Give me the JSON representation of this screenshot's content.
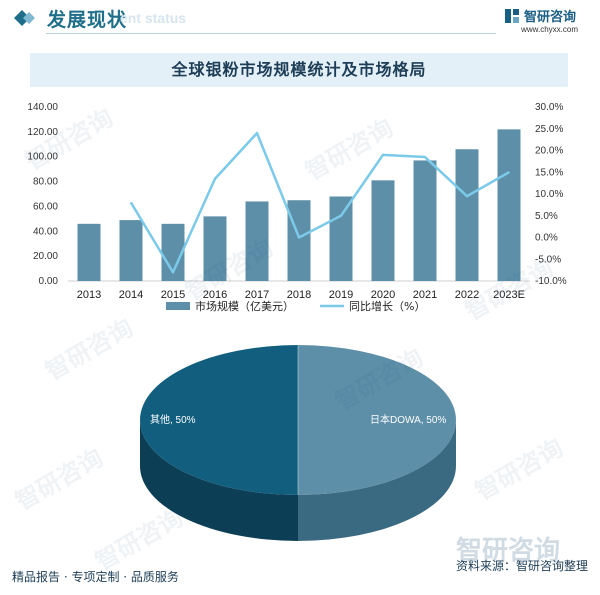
{
  "header": {
    "title": "发展现状",
    "subtitle": "ent status",
    "brand_name": "智研咨询",
    "brand_url": "www.chyxx.com"
  },
  "watermark": {
    "text": "智研咨询"
  },
  "chart_data": [
    {
      "type": "bar",
      "title": "全球银粉市场规模统计及市场格局",
      "categories": [
        "2013",
        "2014",
        "2015",
        "2016",
        "2017",
        "2018",
        "2019",
        "2020",
        "2021",
        "2022",
        "2023E"
      ],
      "series": [
        {
          "name": "市场规模（亿美元）",
          "type": "bar",
          "axis": "left",
          "values": [
            46,
            49,
            46,
            52,
            64,
            65,
            68,
            81,
            97,
            106,
            122
          ]
        },
        {
          "name": "同比增长（%）",
          "type": "line",
          "axis": "right",
          "values": [
            null,
            8,
            -8,
            13.5,
            24,
            0,
            5,
            19,
            18.5,
            9.5,
            15
          ]
        }
      ],
      "y_left": {
        "min": 0,
        "max": 140,
        "step": 20,
        "tick_labels": [
          "0.00",
          "20.00",
          "40.00",
          "60.00",
          "80.00",
          "100.00",
          "120.00",
          "140.00"
        ]
      },
      "y_right": {
        "min": -10,
        "max": 30,
        "step": 5,
        "tick_labels": [
          "-10.0%",
          "-5.0%",
          "0.0%",
          "5.0%",
          "10.0%",
          "15.0%",
          "20.0%",
          "25.0%",
          "30.0%"
        ]
      },
      "legend": "bottom",
      "colors": {
        "bar": "#5d8fa8",
        "line": "#7ccaea"
      }
    },
    {
      "type": "pie",
      "style": "3d",
      "slices": [
        {
          "label": "日本DOWA, 50%",
          "value": 50,
          "color": "#5d8fa8",
          "side_color": "#3a6a82"
        },
        {
          "label": "其他, 50%",
          "value": 50,
          "color": "#125e7e",
          "side_color": "#0c3e55"
        }
      ]
    }
  ],
  "footer": {
    "left": "精品报告 · 专项定制 · 品质服务",
    "right": "资料来源：智研咨询整理"
  }
}
